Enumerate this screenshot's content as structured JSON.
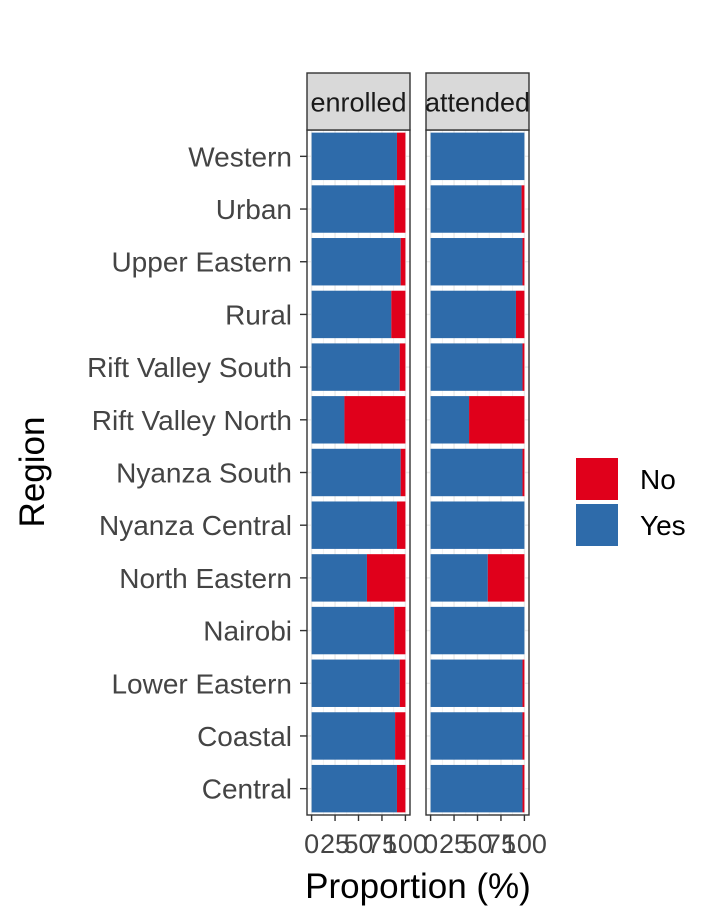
{
  "chart_data": {
    "type": "bar",
    "orientation": "horizontal",
    "stacked": true,
    "xlabel": "Proportion (%)",
    "ylabel": "Region",
    "xlim": [
      0,
      100
    ],
    "x_ticks": [
      0,
      25,
      50,
      75,
      100
    ],
    "x_tick_labels": [
      "0",
      "25",
      "50",
      "75",
      "100"
    ],
    "categories": [
      "Western",
      "Urban",
      "Upper Eastern",
      "Rural",
      "Rift Valley South",
      "Rift Valley North",
      "Nyanza South",
      "Nyanza Central",
      "North Eastern",
      "Nairobi",
      "Lower Eastern",
      "Coastal",
      "Central"
    ],
    "facets": [
      {
        "label": "enrolled",
        "series": [
          {
            "name": "Yes",
            "values": [
              91,
              88,
              95,
              85,
              94,
              35,
              95,
              91,
              59,
              88,
              94,
              89,
              91
            ]
          },
          {
            "name": "No",
            "values": [
              9,
              12,
              5,
              15,
              6,
              65,
              5,
              9,
              41,
              12,
              6,
              11,
              9
            ]
          }
        ]
      },
      {
        "label": "attended",
        "series": [
          {
            "name": "Yes",
            "values": [
              100,
              97,
              98,
              91,
              98,
              41,
              98,
              100,
              61,
              100,
              98,
              98,
              98
            ]
          },
          {
            "name": "No",
            "values": [
              0,
              3,
              2,
              9,
              2,
              59,
              2,
              0,
              39,
              0,
              2,
              2,
              2
            ]
          }
        ]
      }
    ],
    "legend": {
      "position": "right",
      "entries": [
        {
          "name": "No",
          "color": "#E0001B"
        },
        {
          "name": "Yes",
          "color": "#2E6BAA"
        }
      ]
    },
    "colors": {
      "Yes": "#2E6BAA",
      "No": "#E0001B",
      "grid": "#EBEBEB",
      "strip": "#D9D9D9",
      "panel_border": "#333333"
    },
    "grid": true
  }
}
